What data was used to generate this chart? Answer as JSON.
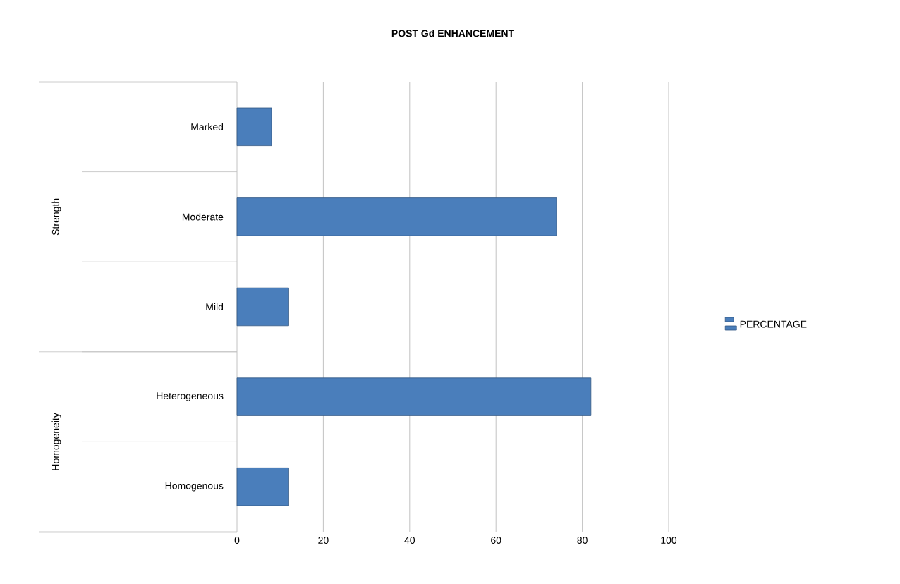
{
  "chart_data": {
    "type": "bar",
    "orientation": "horizontal",
    "title": "POST Gd ENHANCEMENT",
    "categories": [
      "Marked",
      "Moderate",
      "Mild",
      "Heterogeneous",
      "Homogenous"
    ],
    "series": [
      {
        "name": "PERCENTAGE",
        "color": "#4a7ebb",
        "values": [
          8,
          74,
          12,
          82,
          12
        ]
      }
    ],
    "annotations": [
      "Strength",
      "Homogeneity"
    ],
    "xlim": [
      0,
      100
    ],
    "xticks": [
      0,
      20,
      40,
      60,
      80,
      100
    ],
    "grid": "x",
    "legend": "right"
  }
}
